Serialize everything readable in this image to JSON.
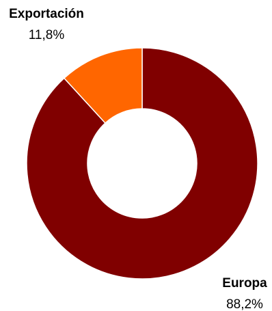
{
  "chart_data": {
    "type": "pie",
    "style": "donut",
    "title": "",
    "categories": [
      "Europa",
      "Exportación"
    ],
    "values": [
      88.2,
      11.8
    ],
    "value_labels": [
      "88,2%",
      "11,8%"
    ],
    "colors": [
      "#800000",
      "#FF6600"
    ],
    "legend": "none",
    "grid": false
  }
}
